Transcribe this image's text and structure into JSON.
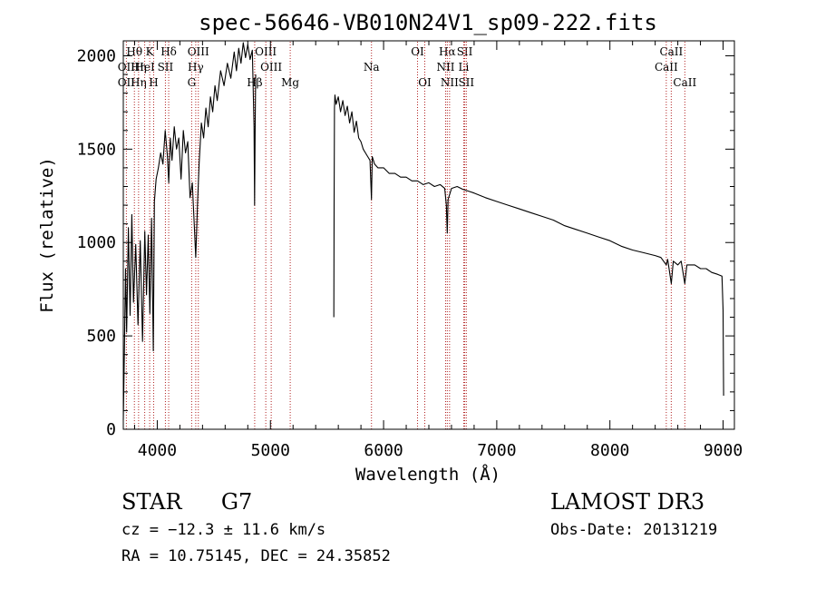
{
  "chart_data": {
    "type": "line",
    "title": "spec-56646-VB010N24V1_sp09-222.fits",
    "xlabel": "Wavelength (Å)",
    "ylabel": "Flux (relative)",
    "xlim": [
      3700,
      9100
    ],
    "ylim": [
      0,
      2080
    ],
    "x_ticks": [
      4000,
      5000,
      6000,
      7000,
      8000,
      9000
    ],
    "y_ticks": [
      0,
      500,
      1000,
      1500,
      2000
    ],
    "grid": false,
    "spectrum_color": "#000000",
    "line_marker_color": "#b22222",
    "gap": [
      4870,
      5560
    ],
    "series": [
      {
        "name": "spectrum",
        "x": [
          3700,
          3710,
          3720,
          3730,
          3745,
          3760,
          3775,
          3790,
          3810,
          3830,
          3850,
          3870,
          3890,
          3905,
          3920,
          3935,
          3950,
          3965,
          3975,
          3990,
          4010,
          4030,
          4050,
          4070,
          4090,
          4101,
          4115,
          4130,
          4150,
          4170,
          4190,
          4210,
          4230,
          4250,
          4270,
          4290,
          4310,
          4330,
          4340,
          4355,
          4370,
          4390,
          4410,
          4430,
          4450,
          4470,
          4490,
          4510,
          4530,
          4560,
          4590,
          4620,
          4650,
          4680,
          4700,
          4720,
          4740,
          4760,
          4780,
          4800,
          4820,
          4840,
          4855,
          4860,
          4865,
          4870
        ],
        "y": [
          50,
          420,
          860,
          520,
          1080,
          610,
          1150,
          680,
          990,
          560,
          1010,
          470,
          1060,
          720,
          1040,
          620,
          1130,
          420,
          1220,
          1340,
          1400,
          1480,
          1420,
          1600,
          1460,
          1320,
          1560,
          1440,
          1620,
          1500,
          1560,
          1340,
          1600,
          1480,
          1540,
          1240,
          1320,
          1060,
          920,
          1200,
          1420,
          1640,
          1560,
          1720,
          1620,
          1780,
          1700,
          1840,
          1760,
          1920,
          1840,
          1960,
          1880,
          2020,
          1920,
          2040,
          1960,
          2070,
          1990,
          2060,
          1980,
          2030,
          1620,
          1200,
          1600,
          1900
        ]
      },
      {
        "name": "spectrum-red",
        "x": [
          5560,
          5563,
          5566,
          5570,
          5580,
          5600,
          5620,
          5640,
          5660,
          5680,
          5700,
          5720,
          5740,
          5760,
          5780,
          5800,
          5820,
          5840,
          5860,
          5880,
          5893,
          5900,
          5920,
          5950,
          6000,
          6050,
          6100,
          6150,
          6200,
          6250,
          6300,
          6350,
          6400,
          6450,
          6500,
          6540,
          6555,
          6563,
          6570,
          6600,
          6650,
          6700,
          6750,
          6800,
          6900,
          7000,
          7100,
          7200,
          7300,
          7400,
          7500,
          7600,
          7700,
          7800,
          7900,
          8000,
          8100,
          8200,
          8300,
          8400,
          8450,
          8498,
          8510,
          8542,
          8560,
          8600,
          8630,
          8662,
          8680,
          8750,
          8800,
          8850,
          8900,
          8950,
          8990,
          9000,
          9005
        ],
        "y": [
          600,
          1200,
          1720,
          1790,
          1740,
          1780,
          1700,
          1760,
          1680,
          1730,
          1640,
          1700,
          1590,
          1650,
          1560,
          1540,
          1500,
          1480,
          1460,
          1440,
          1230,
          1460,
          1420,
          1400,
          1400,
          1370,
          1370,
          1350,
          1350,
          1330,
          1330,
          1310,
          1320,
          1300,
          1310,
          1290,
          1200,
          1050,
          1230,
          1290,
          1300,
          1285,
          1275,
          1265,
          1240,
          1220,
          1200,
          1180,
          1160,
          1140,
          1120,
          1090,
          1070,
          1050,
          1030,
          1010,
          980,
          960,
          945,
          930,
          920,
          880,
          910,
          780,
          900,
          880,
          900,
          780,
          880,
          880,
          860,
          860,
          840,
          830,
          820,
          640,
          180
        ]
      }
    ],
    "line_markers": [
      {
        "name": "OII",
        "wavelength": 3727,
        "row": 2
      },
      {
        "name": "OII",
        "wavelength": 3727,
        "row": 3
      },
      {
        "name": "Hθ",
        "wavelength": 3798,
        "row": 1
      },
      {
        "name": "Hη",
        "wavelength": 3835,
        "row": 2
      },
      {
        "name": "Hη",
        "wavelength": 3835,
        "row": 3
      },
      {
        "name": "HeI",
        "wavelength": 3889,
        "row": 2
      },
      {
        "name": "K",
        "wavelength": 3933,
        "row": 1
      },
      {
        "name": "SII",
        "wavelength": 4072,
        "row": 2
      },
      {
        "name": "H",
        "wavelength": 3968,
        "row": 3
      },
      {
        "name": "Hδ",
        "wavelength": 4101,
        "row": 1
      },
      {
        "name": "OIII",
        "wavelength": 4363,
        "row": 1
      },
      {
        "name": "Hγ",
        "wavelength": 4340,
        "row": 2
      },
      {
        "name": "G",
        "wavelength": 4304,
        "row": 3
      },
      {
        "name": "OIII",
        "wavelength": 4959,
        "row": 1
      },
      {
        "name": "OIII",
        "wavelength": 5007,
        "row": 2
      },
      {
        "name": "Hβ",
        "wavelength": 4861,
        "row": 3
      },
      {
        "name": "Mg",
        "wavelength": 5175,
        "row": 3
      },
      {
        "name": "Na",
        "wavelength": 5893,
        "row": 2
      },
      {
        "name": "OI",
        "wavelength": 6300,
        "row": 1
      },
      {
        "name": "OI",
        "wavelength": 6364,
        "row": 3
      },
      {
        "name": "Hα",
        "wavelength": 6563,
        "row": 1
      },
      {
        "name": "NII",
        "wavelength": 6548,
        "row": 2
      },
      {
        "name": "NII",
        "wavelength": 6583,
        "row": 3
      },
      {
        "name": "SII",
        "wavelength": 6717,
        "row": 1
      },
      {
        "name": "Li",
        "wavelength": 6708,
        "row": 2
      },
      {
        "name": "SII",
        "wavelength": 6731,
        "row": 3
      },
      {
        "name": "CaII",
        "wavelength": 8542,
        "row": 1
      },
      {
        "name": "CaII",
        "wavelength": 8498,
        "row": 2
      },
      {
        "name": "CaII",
        "wavelength": 8662,
        "row": 3
      }
    ]
  },
  "footer": {
    "object_class": "STAR",
    "subclass": "G7",
    "cz_text": "cz = −12.3 ± 11.6 km/s",
    "coords_text": "RA =  10.75145, DEC =  24.35852",
    "survey": "LAMOST DR3",
    "obs_date": "Obs-Date: 20131219"
  }
}
